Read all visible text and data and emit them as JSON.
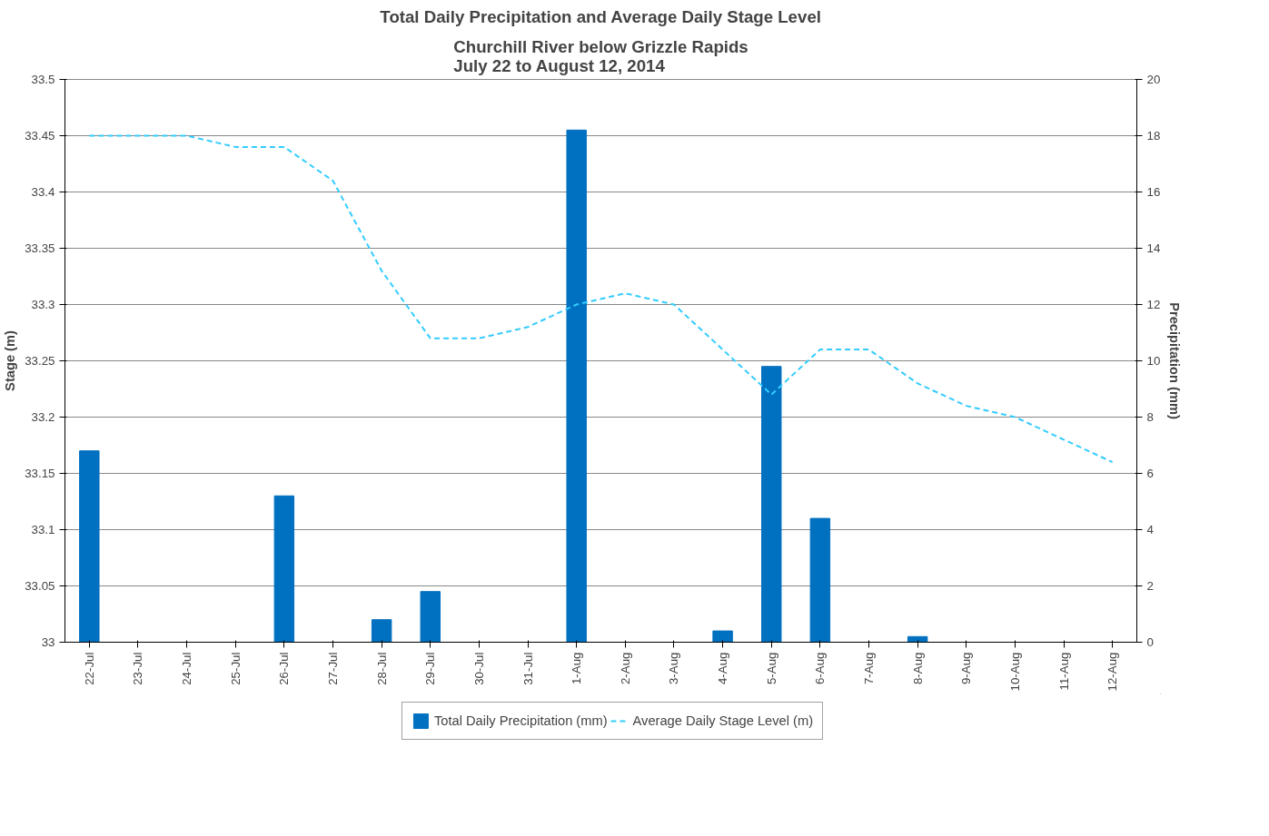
{
  "chart_data": {
    "type": "bar",
    "title": "Total Daily Precipitation and Average Daily Stage Level",
    "subtitle": "Churchill River below Grizzle Rapids\nJuly 22 to August 12, 2014",
    "ylabel": "Stage (m)",
    "y2label": "Precipitation (mm)",
    "categories": [
      "22-Jul",
      "23-Jul",
      "24-Jul",
      "25-Jul",
      "26-Jul",
      "27-Jul",
      "28-Jul",
      "29-Jul",
      "30-Jul",
      "31-Jul",
      "1-Aug",
      "2-Aug",
      "3-Aug",
      "4-Aug",
      "5-Aug",
      "6-Aug",
      "7-Aug",
      "8-Aug",
      "9-Aug",
      "10-Aug",
      "11-Aug",
      "12-Aug"
    ],
    "series": [
      {
        "name": "Total Daily Precipitation (mm)",
        "axis": "y2",
        "color": "#0070c0",
        "values": [
          6.8,
          0,
          0,
          0,
          5.2,
          0,
          0.8,
          1.8,
          0,
          0,
          18.2,
          0,
          0,
          0.4,
          9.8,
          4.4,
          0,
          0.2,
          0,
          0,
          0,
          0
        ]
      },
      {
        "name": "Average Daily Stage Level (m)",
        "type": "line",
        "axis": "y",
        "color": "#33ccff",
        "line_style": "dashed",
        "values": [
          33.45,
          33.45,
          33.45,
          33.44,
          33.44,
          33.41,
          33.33,
          33.27,
          33.27,
          33.28,
          33.3,
          33.31,
          33.3,
          33.26,
          33.22,
          33.26,
          33.26,
          33.23,
          33.21,
          33.2,
          33.18,
          33.16
        ]
      }
    ],
    "ylim": [
      33,
      33.5
    ],
    "yticks": [
      33,
      33.05,
      33.1,
      33.15,
      33.2,
      33.25,
      33.3,
      33.35,
      33.4,
      33.45,
      33.5
    ],
    "y2lim": [
      0,
      20
    ],
    "y2ticks": [
      0,
      2,
      4,
      6,
      8,
      10,
      12,
      14,
      16,
      18,
      20
    ],
    "grid": "y",
    "legend": "bottom"
  }
}
